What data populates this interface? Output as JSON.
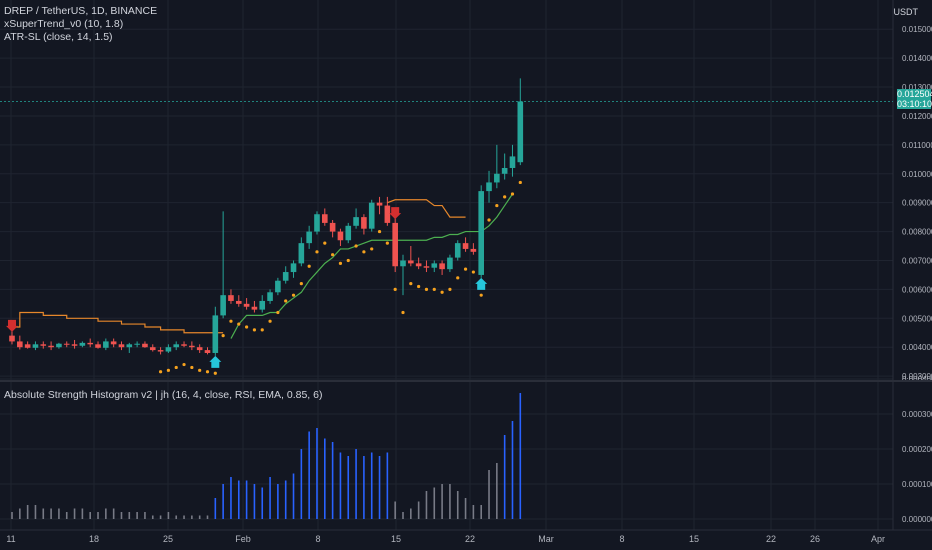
{
  "header": {
    "symbol": "DREP / TetherUS, 1D, BINANCE",
    "indicator_1": "xSuperTrend_v0 (10, 1.8)",
    "indicator_2": "ATR-SL (close, 14, 1.5)",
    "oscillator": "Absolute Strength Histogram v2 | jh (16, 4, close, RSI, EMA, 0.85, 6)",
    "unit": "USDT"
  },
  "last_price": {
    "value": "0.012504",
    "countdown": "03:10:10"
  },
  "colors": {
    "bg": "#131722",
    "up": "#26a69a",
    "down": "#ef5350",
    "grid": "#1f2430",
    "supertrend": "#e6872b",
    "atr_sl": "#4caf50",
    "dots": "#f6a21e",
    "hist_blue": "#2962ff",
    "hist_gray": "#787b86"
  },
  "chart_data": [
    {
      "type": "candlestick",
      "ylim": [
        0.0029,
        0.0157
      ],
      "y_ticks": [
        "0.015000",
        "0.014000",
        "0.013000",
        "0.012000",
        "0.011000",
        "0.010000",
        "0.009000",
        "0.008000",
        "0.007000",
        "0.006000",
        "0.005000",
        "0.004000",
        "0.003000"
      ],
      "x_ticks": [
        "11",
        "18",
        "25",
        "Feb",
        "8",
        "15",
        "22",
        "Mar",
        "8",
        "15",
        "22",
        "26",
        "Apr"
      ],
      "candles": [
        [
          0.0044,
          0.0046,
          0.0041,
          0.0042
        ],
        [
          0.0042,
          0.0044,
          0.00392,
          0.004
        ],
        [
          0.0041,
          0.0042,
          0.00395,
          0.00398
        ],
        [
          0.00398,
          0.0042,
          0.0039,
          0.0041
        ],
        [
          0.0041,
          0.0042,
          0.00395,
          0.00405
        ],
        [
          0.00405,
          0.0042,
          0.0039,
          0.004
        ],
        [
          0.004,
          0.00415,
          0.00395,
          0.00412
        ],
        [
          0.00412,
          0.0042,
          0.004,
          0.0041
        ],
        [
          0.0041,
          0.00425,
          0.00395,
          0.00405
        ],
        [
          0.00405,
          0.0042,
          0.004,
          0.00415
        ],
        [
          0.00415,
          0.0043,
          0.004,
          0.0041
        ],
        [
          0.0041,
          0.0042,
          0.00395,
          0.00398
        ],
        [
          0.00398,
          0.0043,
          0.0039,
          0.0042
        ],
        [
          0.0042,
          0.0043,
          0.004,
          0.0041
        ],
        [
          0.0041,
          0.0042,
          0.0039,
          0.004
        ],
        [
          0.004,
          0.00415,
          0.0038,
          0.0041
        ],
        [
          0.0041,
          0.0042,
          0.004,
          0.00412
        ],
        [
          0.00412,
          0.0042,
          0.00398,
          0.004
        ],
        [
          0.004,
          0.0041,
          0.00385,
          0.0039
        ],
        [
          0.0039,
          0.004,
          0.00375,
          0.00385
        ],
        [
          0.00385,
          0.0041,
          0.0038,
          0.004
        ],
        [
          0.004,
          0.0042,
          0.0039,
          0.0041
        ],
        [
          0.0041,
          0.0042,
          0.004,
          0.00405
        ],
        [
          0.00405,
          0.0042,
          0.0039,
          0.004
        ],
        [
          0.004,
          0.0041,
          0.0038,
          0.0039
        ],
        [
          0.0039,
          0.004,
          0.00375,
          0.0038
        ],
        [
          0.0038,
          0.0054,
          0.0037,
          0.0051
        ],
        [
          0.0051,
          0.0087,
          0.005,
          0.0058
        ],
        [
          0.0058,
          0.006,
          0.0055,
          0.0056
        ],
        [
          0.0056,
          0.0058,
          0.0054,
          0.0055
        ],
        [
          0.0055,
          0.0057,
          0.0053,
          0.0054
        ],
        [
          0.0054,
          0.0056,
          0.0052,
          0.0053
        ],
        [
          0.0053,
          0.0058,
          0.0052,
          0.0056
        ],
        [
          0.0056,
          0.006,
          0.0055,
          0.0059
        ],
        [
          0.0059,
          0.0064,
          0.0058,
          0.0063
        ],
        [
          0.0063,
          0.0068,
          0.0062,
          0.0066
        ],
        [
          0.0066,
          0.007,
          0.0064,
          0.0069
        ],
        [
          0.0069,
          0.0078,
          0.0068,
          0.0076
        ],
        [
          0.0076,
          0.0082,
          0.0074,
          0.008
        ],
        [
          0.008,
          0.0087,
          0.0079,
          0.0086
        ],
        [
          0.0086,
          0.0088,
          0.0082,
          0.0083
        ],
        [
          0.0083,
          0.0084,
          0.0078,
          0.008
        ],
        [
          0.008,
          0.0081,
          0.0075,
          0.0077
        ],
        [
          0.0077,
          0.0083,
          0.0076,
          0.0082
        ],
        [
          0.0082,
          0.0088,
          0.0081,
          0.0085
        ],
        [
          0.0085,
          0.0086,
          0.0079,
          0.0081
        ],
        [
          0.0081,
          0.0091,
          0.008,
          0.009
        ],
        [
          0.009,
          0.0092,
          0.0086,
          0.0089
        ],
        [
          0.0089,
          0.0092,
          0.0082,
          0.0083
        ],
        [
          0.0083,
          0.0085,
          0.0066,
          0.0068
        ],
        [
          0.0068,
          0.0072,
          0.0058,
          0.007
        ],
        [
          0.007,
          0.0075,
          0.0068,
          0.0069
        ],
        [
          0.0069,
          0.0071,
          0.0067,
          0.0068
        ],
        [
          0.0068,
          0.007,
          0.0066,
          0.00675
        ],
        [
          0.00675,
          0.007,
          0.0066,
          0.0069
        ],
        [
          0.0069,
          0.007,
          0.0065,
          0.0067
        ],
        [
          0.0067,
          0.0072,
          0.0066,
          0.0071
        ],
        [
          0.0071,
          0.0077,
          0.007,
          0.0076
        ],
        [
          0.0076,
          0.0078,
          0.0073,
          0.0074
        ],
        [
          0.0074,
          0.0076,
          0.0072,
          0.0073
        ],
        [
          0.0065,
          0.0096,
          0.0064,
          0.0094
        ],
        [
          0.0094,
          0.0101,
          0.009,
          0.0097
        ],
        [
          0.0097,
          0.011,
          0.0095,
          0.01
        ],
        [
          0.01,
          0.0107,
          0.0098,
          0.0102
        ],
        [
          0.0102,
          0.011,
          0.0099,
          0.0106
        ],
        [
          0.0104,
          0.0133,
          0.0103,
          0.0125
        ]
      ],
      "supertrend": [
        0.0047,
        0.0052,
        0.0052,
        0.0052,
        0.0051,
        0.0051,
        0.0051,
        0.005,
        0.005,
        0.005,
        0.005,
        0.0049,
        0.0049,
        0.0049,
        0.0048,
        0.0048,
        0.0048,
        0.0047,
        0.0047,
        0.0046,
        0.0046,
        0.0046,
        0.0045,
        0.0045,
        0.0045,
        0.0045,
        0.0045,
        0.0045
      ],
      "atr_sl": [
        0.0043,
        0.0048,
        0.0051,
        0.0051,
        0.0051,
        0.0052,
        0.0052,
        0.0055,
        0.0057,
        0.0059,
        0.0063,
        0.0066,
        0.0069,
        0.0071,
        0.0074,
        0.0074,
        0.0075,
        0.0076,
        0.0077,
        0.0077,
        0.0077,
        0.0077,
        0.0077,
        0.0077,
        0.0077,
        0.0077,
        0.0078,
        0.0078,
        0.0079,
        0.0079,
        0.008,
        0.008,
        0.008,
        0.0082,
        0.0085,
        0.0089,
        0.0093
      ],
      "resistance_line": [
        0.009,
        0.0091,
        0.0091,
        0.0091,
        0.0091,
        0.0091,
        0.0089,
        0.0089,
        0.0085,
        0.0085,
        0.0085
      ],
      "signals": [
        {
          "type": "sell",
          "index": 0
        },
        {
          "type": "buy",
          "index": 26
        },
        {
          "type": "sell",
          "index": 49
        },
        {
          "type": "buy",
          "index": 60
        }
      ]
    },
    {
      "type": "bar",
      "ylim": [
        0,
        0.00041
      ],
      "y_ticks": [
        "0.000400",
        "0.000300",
        "0.000200",
        "0.000100",
        "0.000000"
      ],
      "values": [
        2e-05,
        3e-05,
        4e-05,
        4e-05,
        3e-05,
        3e-05,
        3e-05,
        2e-05,
        3e-05,
        3e-05,
        2e-05,
        2e-05,
        3e-05,
        3e-05,
        2e-05,
        2e-05,
        2e-05,
        2e-05,
        1e-05,
        1e-05,
        2e-05,
        1e-05,
        1e-05,
        1e-05,
        1e-05,
        1e-05,
        6e-05,
        0.0001,
        0.00012,
        0.00011,
        0.00011,
        0.0001,
        9e-05,
        0.00012,
        0.0001,
        0.00011,
        0.00013,
        0.0002,
        0.00025,
        0.00026,
        0.00023,
        0.00022,
        0.00019,
        0.00018,
        0.0002,
        0.00018,
        0.00019,
        0.00018,
        0.00019,
        5e-05,
        2e-05,
        3e-05,
        5e-05,
        8e-05,
        9e-05,
        0.0001,
        0.0001,
        8e-05,
        6e-05,
        4e-05,
        4e-05,
        0.00014,
        0.00016,
        0.00024,
        0.00028,
        0.00036
      ],
      "bar_colors": [
        "gray",
        "gray",
        "gray",
        "gray",
        "gray",
        "gray",
        "gray",
        "gray",
        "gray",
        "gray",
        "gray",
        "gray",
        "gray",
        "gray",
        "gray",
        "gray",
        "gray",
        "gray",
        "gray",
        "gray",
        "gray",
        "gray",
        "gray",
        "gray",
        "gray",
        "gray",
        "blue",
        "blue",
        "blue",
        "blue",
        "blue",
        "blue",
        "blue",
        "blue",
        "blue",
        "blue",
        "blue",
        "blue",
        "blue",
        "blue",
        "blue",
        "blue",
        "blue",
        "blue",
        "blue",
        "blue",
        "blue",
        "blue",
        "blue",
        "gray",
        "gray",
        "gray",
        "gray",
        "gray",
        "gray",
        "gray",
        "gray",
        "gray",
        "gray",
        "gray",
        "gray",
        "gray",
        "gray",
        "blue",
        "blue",
        "blue"
      ]
    }
  ]
}
